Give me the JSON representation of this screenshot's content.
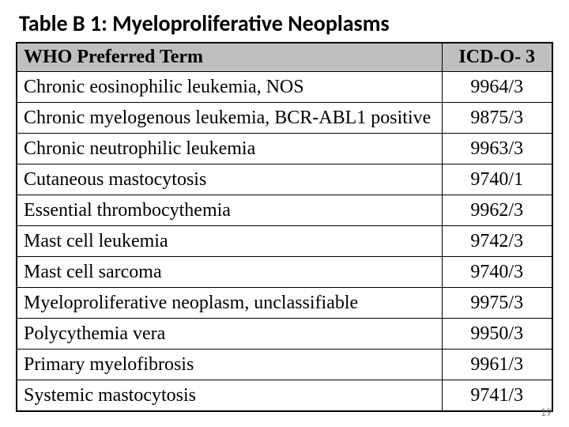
{
  "title": "Table B 1: Myeloproliferative Neoplasms",
  "table": {
    "type": "table",
    "columns": [
      "WHO Preferred Term",
      "ICD-O- 3"
    ],
    "header_bg": "#bfbfbf",
    "border_color": "#000000",
    "column_widths": [
      "auto",
      "140px"
    ],
    "column_align": [
      "left",
      "center"
    ],
    "header_fontsize": 24,
    "cell_fontsize": 24,
    "font_family": "Times New Roman",
    "rows": [
      {
        "term": "Chronic eosinophilic leukemia, NOS",
        "code": "9964/3"
      },
      {
        "term": "Chronic myelogenous leukemia, BCR-ABL1 positive",
        "code": "9875/3"
      },
      {
        "term": "Chronic neutrophilic leukemia",
        "code": "9963/3"
      },
      {
        "term": "Cutaneous mastocytosis",
        "code": "9740/1"
      },
      {
        "term": "Essential thrombocythemia",
        "code": "9962/3"
      },
      {
        "term": "Mast cell leukemia",
        "code": "9742/3"
      },
      {
        "term": "Mast cell sarcoma",
        "code": "9740/3"
      },
      {
        "term": "Myeloproliferative neoplasm, unclassifiable",
        "code": "9975/3"
      },
      {
        "term": "Polycythemia vera",
        "code": "9950/3"
      },
      {
        "term": "Primary myelofibrosis",
        "code": "9961/3"
      },
      {
        "term": "Systemic mastocytosis",
        "code": "9741/3"
      }
    ]
  },
  "page_number": "19",
  "colors": {
    "background": "#ffffff",
    "text": "#000000",
    "header_bg": "#bfbfbf",
    "page_num": "#7f7f7f"
  },
  "title_style": {
    "font_family": "Calibri",
    "font_weight": 700,
    "fontsize": 28
  }
}
